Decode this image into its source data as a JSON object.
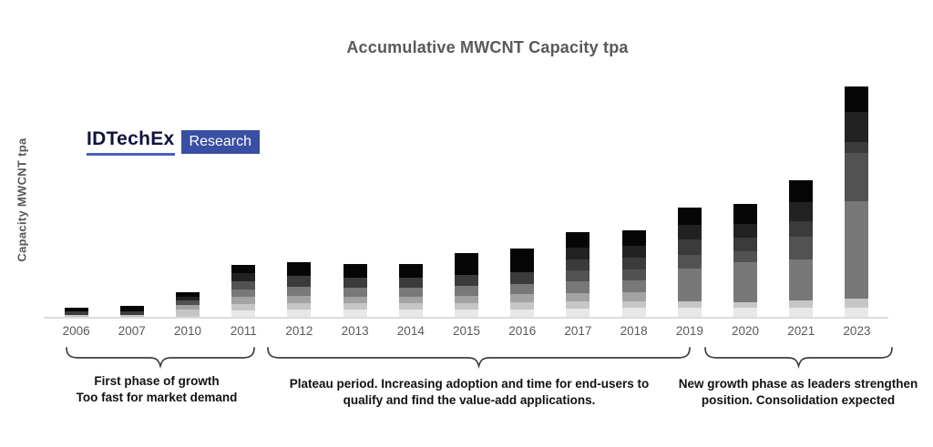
{
  "title": "Accumulative MWCNT Capacity tpa",
  "y_axis_label": "Capacity MWCNT tpa",
  "logo": {
    "brand": "IDTechEx",
    "suffix": "Research"
  },
  "colors": {
    "title_text": "#595959",
    "tick_text": "#595959",
    "annotation_text": "#111111",
    "axis_line": "#dcdcdc",
    "brace": "#3f3f3f",
    "logo_brand": "#121240",
    "logo_underline": "#4a5fc0",
    "logo_box": "#3a4fa3",
    "logo_box_text": "#ffffff"
  },
  "chart_data": {
    "type": "bar",
    "stacked": true,
    "title": "Accumulative MWCNT Capacity tpa",
    "xlabel": "",
    "ylabel": "Capacity MWCNT tpa",
    "y_axis_tick_labels_visible": false,
    "grid": false,
    "legend": false,
    "categories": [
      "2006",
      "2007",
      "2010",
      "2011",
      "2012",
      "2013",
      "2014",
      "2015",
      "2016",
      "2017",
      "2018",
      "2019",
      "2020",
      "2021",
      "2023"
    ],
    "values": [
      10,
      12,
      27,
      57,
      60,
      58,
      58,
      70,
      75,
      93,
      95,
      120,
      124,
      150,
      253
    ],
    "values_note": "relative units estimated from bar pixel heights; source chart shows no numeric y-axis scale",
    "palette": [
      "#e8e8e8",
      "#c6c6c6",
      "#a3a3a3",
      "#787878",
      "#525252",
      "#3b3b3b",
      "#222222",
      "#060606"
    ],
    "stacks": [
      [
        [
          1,
          0.25
        ],
        [
          5,
          0.35
        ],
        [
          7,
          0.4
        ]
      ],
      [
        [
          1,
          0.2
        ],
        [
          5,
          0.3
        ],
        [
          7,
          0.5
        ]
      ],
      [
        [
          1,
          0.3
        ],
        [
          2,
          0.18
        ],
        [
          4,
          0.18
        ],
        [
          6,
          0.17
        ],
        [
          7,
          0.17
        ]
      ],
      [
        [
          0,
          0.12
        ],
        [
          1,
          0.13
        ],
        [
          2,
          0.14
        ],
        [
          3,
          0.14
        ],
        [
          4,
          0.16
        ],
        [
          6,
          0.15
        ],
        [
          7,
          0.16
        ]
      ],
      [
        [
          0,
          0.13
        ],
        [
          1,
          0.12
        ],
        [
          2,
          0.13
        ],
        [
          3,
          0.17
        ],
        [
          5,
          0.2
        ],
        [
          7,
          0.25
        ]
      ],
      [
        [
          0,
          0.13
        ],
        [
          1,
          0.12
        ],
        [
          2,
          0.13
        ],
        [
          3,
          0.17
        ],
        [
          5,
          0.2
        ],
        [
          7,
          0.25
        ]
      ],
      [
        [
          0,
          0.13
        ],
        [
          1,
          0.12
        ],
        [
          2,
          0.13
        ],
        [
          3,
          0.17
        ],
        [
          5,
          0.2
        ],
        [
          7,
          0.25
        ]
      ],
      [
        [
          0,
          0.11
        ],
        [
          1,
          0.1
        ],
        [
          2,
          0.12
        ],
        [
          3,
          0.15
        ],
        [
          5,
          0.18
        ],
        [
          7,
          0.34
        ]
      ],
      [
        [
          0,
          0.11
        ],
        [
          1,
          0.1
        ],
        [
          2,
          0.12
        ],
        [
          3,
          0.15
        ],
        [
          5,
          0.18
        ],
        [
          7,
          0.34
        ]
      ],
      [
        [
          0,
          0.1
        ],
        [
          1,
          0.08
        ],
        [
          2,
          0.1
        ],
        [
          3,
          0.14
        ],
        [
          4,
          0.13
        ],
        [
          5,
          0.13
        ],
        [
          6,
          0.14
        ],
        [
          7,
          0.18
        ]
      ],
      [
        [
          0,
          0.1
        ],
        [
          1,
          0.08
        ],
        [
          2,
          0.1
        ],
        [
          3,
          0.14
        ],
        [
          4,
          0.13
        ],
        [
          5,
          0.13
        ],
        [
          6,
          0.14
        ],
        [
          7,
          0.18
        ]
      ],
      [
        [
          0,
          0.08
        ],
        [
          1,
          0.06
        ],
        [
          3,
          0.3
        ],
        [
          4,
          0.13
        ],
        [
          5,
          0.14
        ],
        [
          6,
          0.13
        ],
        [
          7,
          0.16
        ]
      ],
      [
        [
          0,
          0.08
        ],
        [
          1,
          0.05
        ],
        [
          3,
          0.35
        ],
        [
          4,
          0.1
        ],
        [
          5,
          0.12
        ],
        [
          6,
          0.12
        ],
        [
          7,
          0.18
        ]
      ],
      [
        [
          0,
          0.07
        ],
        [
          1,
          0.05
        ],
        [
          3,
          0.3
        ],
        [
          4,
          0.17
        ],
        [
          5,
          0.11
        ],
        [
          6,
          0.14
        ],
        [
          7,
          0.16
        ]
      ],
      [
        [
          0,
          0.04
        ],
        [
          1,
          0.04
        ],
        [
          3,
          0.42
        ],
        [
          4,
          0.21
        ],
        [
          5,
          0.05
        ],
        [
          6,
          0.13
        ],
        [
          7,
          0.11
        ]
      ]
    ]
  },
  "annotations": [
    {
      "lines": [
        "First phase of growth",
        "Too fast for market demand"
      ]
    },
    {
      "lines": [
        "Plateau period. Increasing adoption and time for end-users to",
        "qualify and find the value-add applications."
      ]
    },
    {
      "lines": [
        "New growth phase as leaders strengthen",
        "position. Consolidation expected"
      ]
    }
  ]
}
